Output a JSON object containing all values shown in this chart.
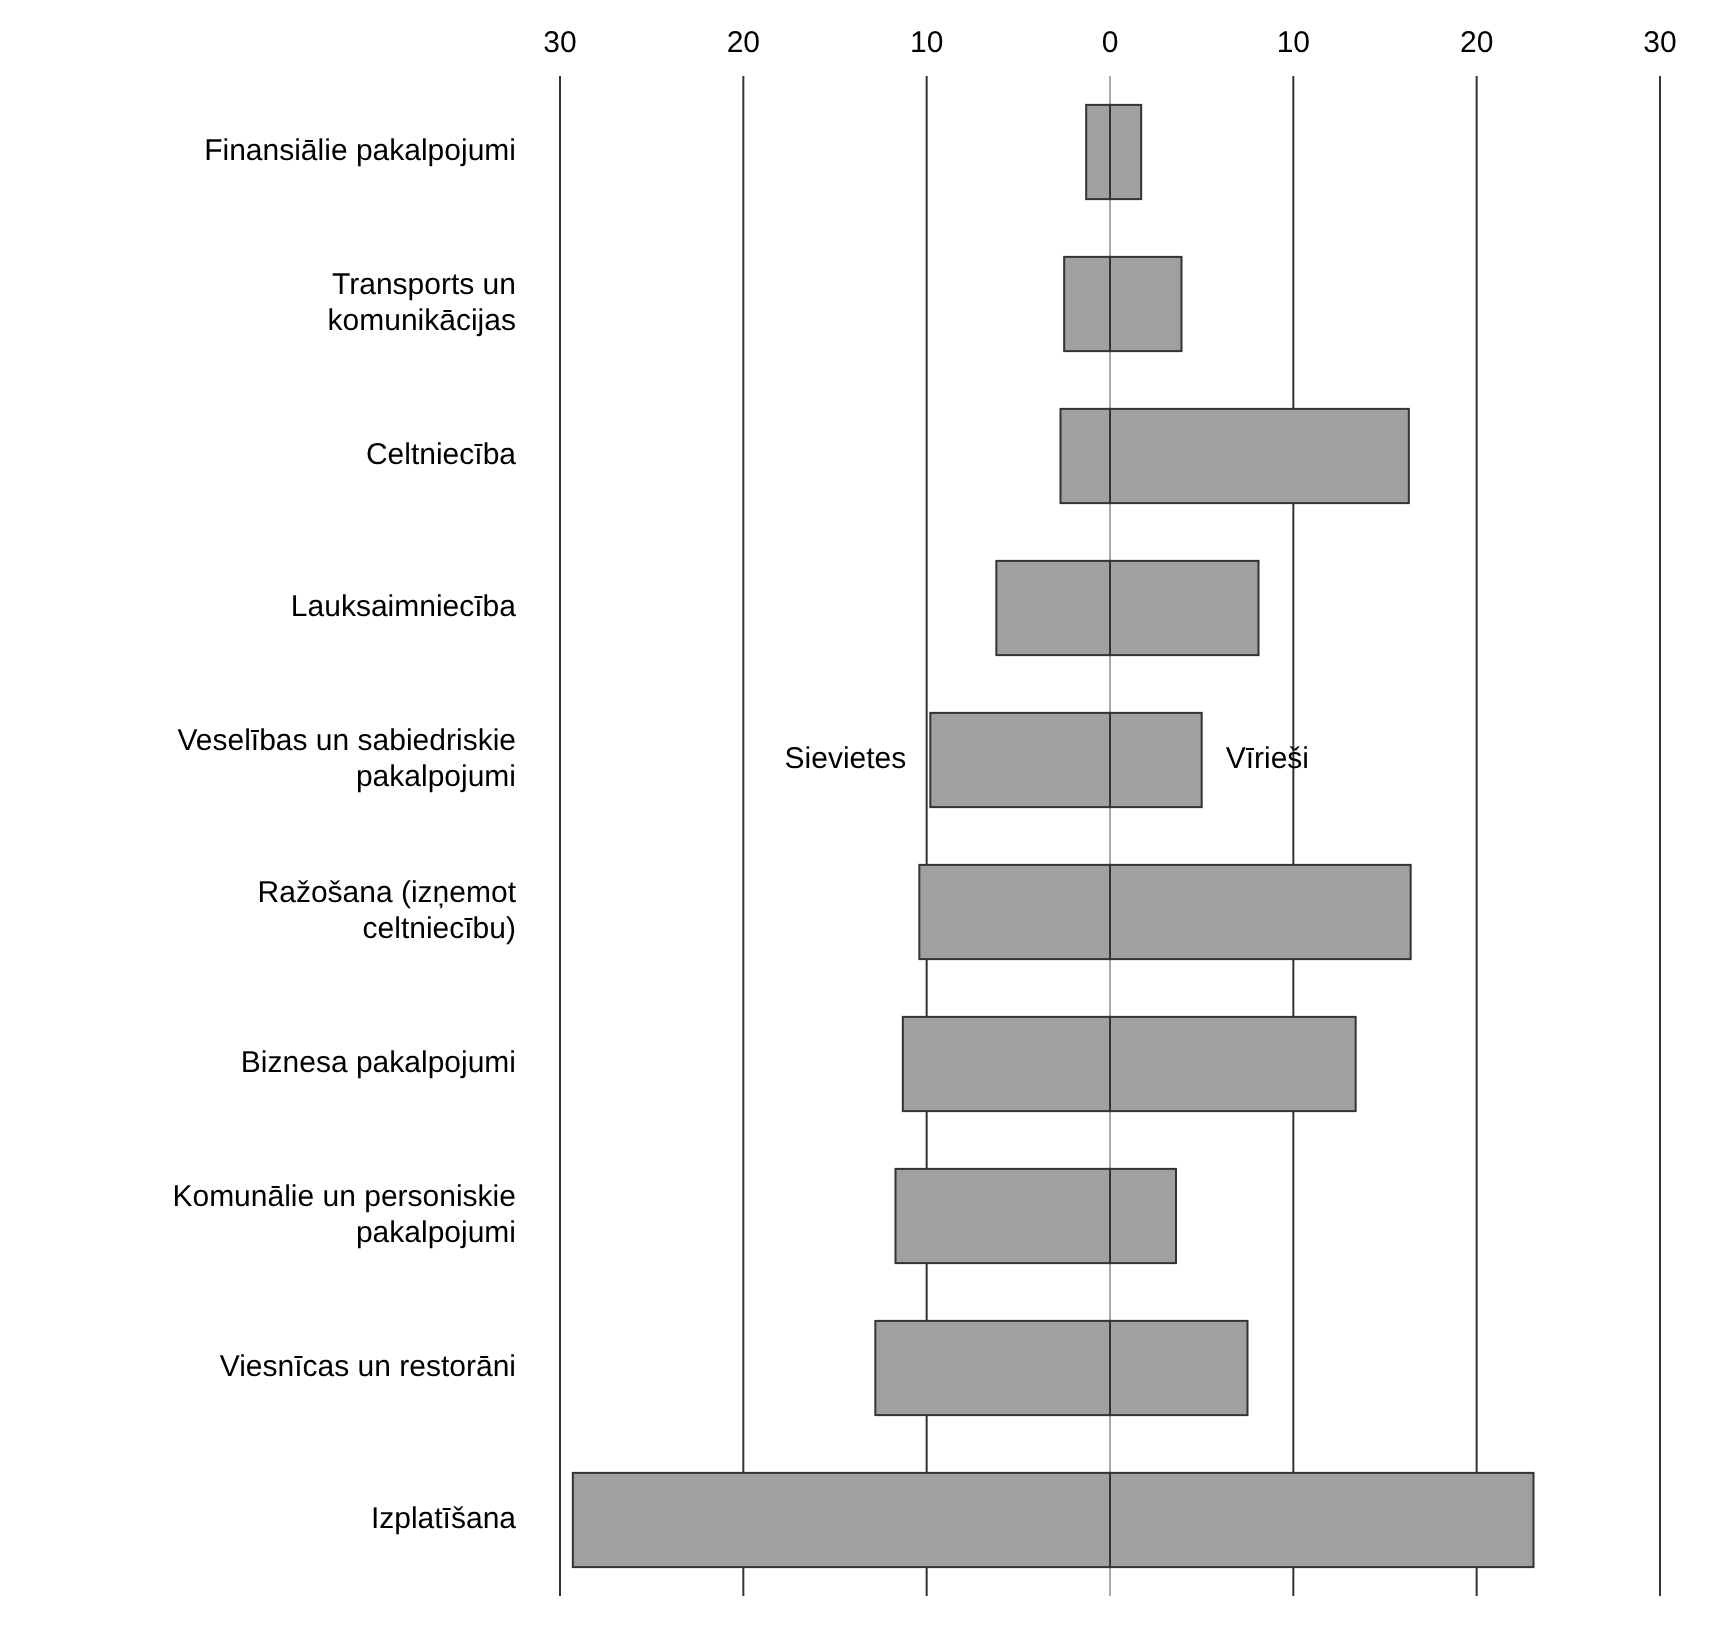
{
  "chart_data": {
    "type": "bar",
    "orientation": "horizontal",
    "categories": [
      "Finansiālie pakalpojumi",
      "Transports un komunikācijas",
      "Celtniecība",
      "Lauksaimniecība",
      "Veselības un sabiedriskie pakalpojumi",
      "Ražošana (izņemot celtniecību)",
      "Biznesa pakalpojumi",
      "Komunālie un personiskie pakalpojumi",
      "Viesnīcas un restorāni",
      "Izplatīšana"
    ],
    "series": [
      {
        "name": "Sievietes",
        "color": "#a0a0a0",
        "values": [
          -1.3,
          -2.5,
          -2.7,
          -6.2,
          -9.8,
          -10.4,
          -11.3,
          -11.7,
          -12.8,
          -29.3
        ]
      },
      {
        "name": "Vīrieši",
        "color": "#a0a0a0",
        "values": [
          1.7,
          3.9,
          16.3,
          8.1,
          5.0,
          16.4,
          13.4,
          3.6,
          7.5,
          23.1
        ]
      }
    ],
    "xlim": [
      -30,
      30
    ],
    "xticks": [
      {
        "value": -30,
        "label": "30"
      },
      {
        "value": -20,
        "label": "20"
      },
      {
        "value": -10,
        "label": "10"
      },
      0,
      10,
      20,
      30
    ],
    "grid": "x",
    "stacked": true
  }
}
